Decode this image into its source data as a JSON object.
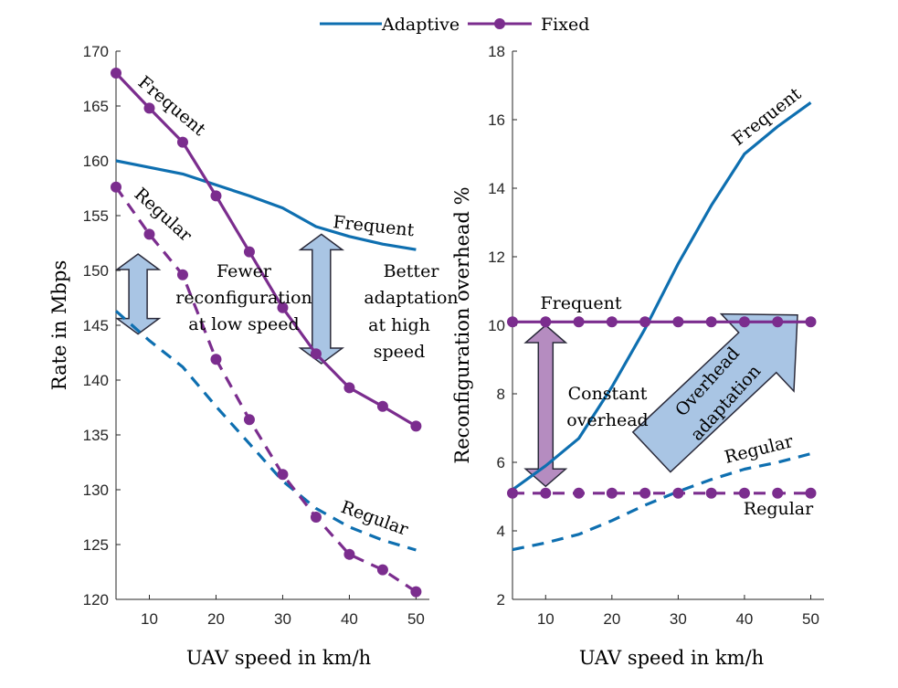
{
  "legend": {
    "adaptive": "Adaptive",
    "fixed": "Fixed"
  },
  "colors": {
    "adaptive": "#0e6fb0",
    "fixed": "#7b2d8e",
    "arrow_fill": "#a9c5e4",
    "arrow_purple_fill": "#b58cc0"
  },
  "chart_data": [
    {
      "type": "line",
      "xlabel": "UAV speed in km/h",
      "ylabel": "Rate in Mbps",
      "xlim": [
        5,
        52
      ],
      "ylim": [
        120,
        170
      ],
      "xticks": [
        10,
        20,
        30,
        40,
        50
      ],
      "yticks": [
        120,
        125,
        130,
        135,
        140,
        145,
        150,
        155,
        160,
        165,
        170
      ],
      "series": [
        {
          "name": "Adaptive Frequent",
          "style": "solid",
          "color": "adaptive",
          "x": [
            5,
            10,
            15,
            20,
            25,
            30,
            35,
            40,
            45,
            50
          ],
          "y": [
            160,
            159.4,
            158.8,
            157.8,
            156.8,
            155.7,
            154.0,
            153.1,
            152.4,
            151.9
          ]
        },
        {
          "name": "Adaptive Regular",
          "style": "dashed",
          "color": "adaptive",
          "x": [
            5,
            10,
            15,
            20,
            25,
            30,
            35,
            40,
            45,
            50
          ],
          "y": [
            146.3,
            143.6,
            141.2,
            137.6,
            134.2,
            130.8,
            128.3,
            126.6,
            125.4,
            124.5
          ]
        },
        {
          "name": "Fixed Frequent",
          "style": "solid",
          "color": "fixed",
          "markers": true,
          "x": [
            5,
            10,
            15,
            20,
            25,
            30,
            35,
            40,
            45,
            50
          ],
          "y": [
            168,
            164.8,
            161.7,
            156.8,
            151.7,
            146.6,
            142.4,
            139.3,
            137.6,
            135.8
          ]
        },
        {
          "name": "Fixed Regular",
          "style": "dashed",
          "color": "fixed",
          "markers": true,
          "x": [
            5,
            10,
            15,
            20,
            25,
            30,
            35,
            40,
            45,
            50
          ],
          "y": [
            157.6,
            153.3,
            149.6,
            141.9,
            136.4,
            131.4,
            127.5,
            124.1,
            122.7,
            120.7
          ]
        }
      ],
      "annotations": {
        "fixed_frequent": "Frequent",
        "fixed_regular": "Regular",
        "adaptive_frequent": "Frequent",
        "adaptive_regular": "Regular",
        "fewer_1": "Fewer",
        "fewer_2": "reconfiguration",
        "fewer_3": "at low speed",
        "better_1": "Better",
        "better_2": "adaptation",
        "better_3": "at high",
        "better_4": "speed"
      }
    },
    {
      "type": "line",
      "xlabel": "UAV speed in km/h",
      "ylabel": "Reconfiguration overhead %",
      "xlim": [
        5,
        52
      ],
      "ylim": [
        2,
        18
      ],
      "xticks": [
        10,
        20,
        30,
        40,
        50
      ],
      "yticks": [
        2,
        4,
        6,
        8,
        10,
        12,
        14,
        16,
        18
      ],
      "series": [
        {
          "name": "Adaptive Frequent",
          "style": "solid",
          "color": "adaptive",
          "x": [
            5,
            10,
            15,
            20,
            25,
            30,
            35,
            40,
            45,
            50
          ],
          "y": [
            5.2,
            5.9,
            6.7,
            8.2,
            9.9,
            11.8,
            13.5,
            15.0,
            15.8,
            16.5
          ]
        },
        {
          "name": "Adaptive Regular",
          "style": "dashed",
          "color": "adaptive",
          "x": [
            5,
            10,
            15,
            20,
            25,
            30,
            35,
            40,
            45,
            50
          ],
          "y": [
            3.45,
            3.65,
            3.9,
            4.3,
            4.75,
            5.15,
            5.5,
            5.8,
            6.0,
            6.25
          ]
        },
        {
          "name": "Fixed Frequent",
          "style": "solid",
          "color": "fixed",
          "markers": true,
          "x": [
            5,
            10,
            15,
            20,
            25,
            30,
            35,
            40,
            45,
            50
          ],
          "y": [
            10.1,
            10.1,
            10.1,
            10.1,
            10.1,
            10.1,
            10.1,
            10.1,
            10.1,
            10.1
          ]
        },
        {
          "name": "Fixed Regular",
          "style": "dashed",
          "color": "fixed",
          "markers": true,
          "x": [
            5,
            10,
            15,
            20,
            25,
            30,
            35,
            40,
            45,
            50
          ],
          "y": [
            5.1,
            5.1,
            5.1,
            5.1,
            5.1,
            5.1,
            5.1,
            5.1,
            5.1,
            5.1
          ]
        }
      ],
      "annotations": {
        "adaptive_frequent": "Frequent",
        "fixed_frequent": "Frequent",
        "adaptive_regular": "Regular",
        "fixed_regular": "Regular",
        "constant_1": "Constant",
        "constant_2": "overhead",
        "overhead_1": "Overhead",
        "overhead_2": "adaptation"
      }
    }
  ]
}
